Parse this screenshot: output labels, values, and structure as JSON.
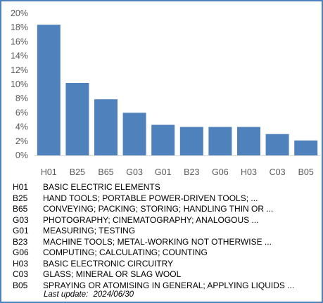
{
  "chart_data": {
    "type": "bar",
    "categories": [
      "H01",
      "B25",
      "B65",
      "G03",
      "G01",
      "B23",
      "G06",
      "H03",
      "C03",
      "B05"
    ],
    "values": [
      18.4,
      10.2,
      7.9,
      6.0,
      4.3,
      4.0,
      4.0,
      4.0,
      3.0,
      2.1
    ],
    "ylim": [
      0,
      20
    ],
    "yticks": [
      "0%",
      "2%",
      "4%",
      "6%",
      "8%",
      "10%",
      "12%",
      "14%",
      "16%",
      "18%",
      "20%"
    ],
    "bar_color": "#4f81bd",
    "grid": false
  },
  "legend": [
    {
      "code": "H01",
      "desc": "BASIC ELECTRIC ELEMENTS"
    },
    {
      "code": "B25",
      "desc": "HAND TOOLS; PORTABLE POWER-DRIVEN TOOLS; ..."
    },
    {
      "code": "B65",
      "desc": "CONVEYING; PACKING; STORING; HANDLING THIN OR ..."
    },
    {
      "code": "G03",
      "desc": "PHOTOGRAPHY; CINEMATOGRAPHY; ANALOGOUS ..."
    },
    {
      "code": "G01",
      "desc": "MEASURING; TESTING"
    },
    {
      "code": "B23",
      "desc": "MACHINE TOOLS; METAL-WORKING NOT OTHERWISE ..."
    },
    {
      "code": "G06",
      "desc": "COMPUTING; CALCULATING; COUNTING"
    },
    {
      "code": "H03",
      "desc": "BASIC ELECTRONIC CIRCUITRY"
    },
    {
      "code": "C03",
      "desc": "GLASS; MINERAL OR SLAG WOOL"
    },
    {
      "code": "B05",
      "desc": "SPRAYING OR ATOMISING IN GENERAL; APPLYING LIQUIDS ..."
    }
  ],
  "footer": {
    "label": "Last update:",
    "date": "2024/06/30"
  },
  "colors": {
    "border": "#4f81bd",
    "axis_text": "#595959"
  }
}
